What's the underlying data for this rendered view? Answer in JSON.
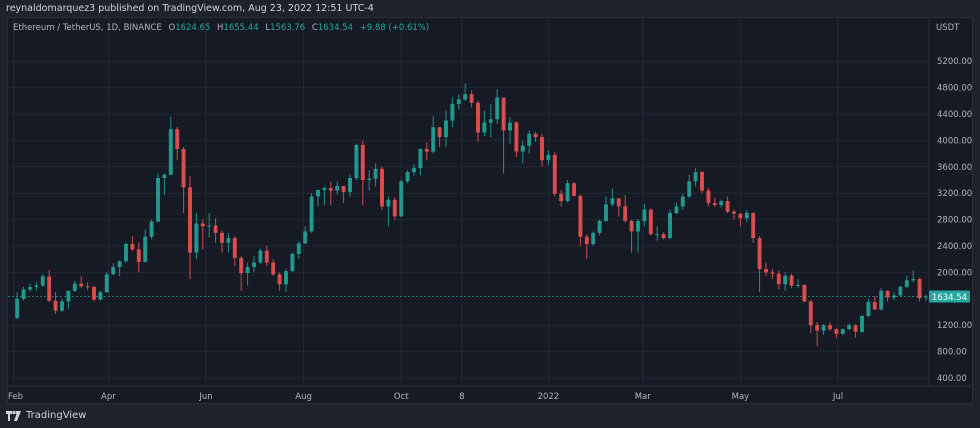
{
  "header": {
    "publisher_line": "reynaldomarquez3 published on TradingView.com, Aug 23, 2022 12:51 UTC-4",
    "symbol": "Ethereum / TetherUS, 1D, BINANCE",
    "ohlc": {
      "o_label": "O",
      "o": "1624.65",
      "h_label": "H",
      "h": "1655.44",
      "l_label": "L",
      "l": "1563.76",
      "c_label": "C",
      "c": "1634.54",
      "change": "+9.88 (+0.61%)"
    }
  },
  "footer": {
    "brand": "TradingView",
    "logo_icon": "tradingview-logo-icon"
  },
  "colors": {
    "up": "#26a69a",
    "down": "#ef5350",
    "background": "#161a25",
    "grid": "#232734",
    "last_price": "#26a69a"
  },
  "chart_data": {
    "type": "candlestick",
    "title": "Ethereum / TetherUS, 1D, BINANCE",
    "ylabel": "USDT",
    "ylim": [
      250,
      5550
    ],
    "y_ticks": [
      "400.00",
      "800.00",
      "1200.00",
      "2000.00",
      "2400.00",
      "2800.00",
      "3200.00",
      "3600.00",
      "4000.00",
      "4400.00",
      "4800.00",
      "5200.00"
    ],
    "x_range": [
      "2021-02-01",
      "2022-08-24"
    ],
    "x_ticks": [
      {
        "label": "Feb",
        "date": "2021-02-01"
      },
      {
        "label": "Apr",
        "date": "2021-04-01"
      },
      {
        "label": "Jun",
        "date": "2021-06-01"
      },
      {
        "label": "Aug",
        "date": "2021-08-01"
      },
      {
        "label": "Oct",
        "date": "2021-10-01"
      },
      {
        "label": "8",
        "date": "2021-11-08"
      },
      {
        "label": "2022",
        "date": "2022-01-01"
      },
      {
        "label": "Mar",
        "date": "2022-03-01"
      },
      {
        "label": "May",
        "date": "2022-05-01"
      },
      {
        "label": "Jul",
        "date": "2022-07-01"
      }
    ],
    "last_price": "1634.54",
    "grid": true,
    "candle_start": "2021-02-01",
    "candle_step_days": 4,
    "ohlc": [
      [
        1310,
        1700,
        1290,
        1600
      ],
      [
        1600,
        1780,
        1570,
        1740
      ],
      [
        1740,
        1830,
        1710,
        1780
      ],
      [
        1780,
        1850,
        1730,
        1800
      ],
      [
        1800,
        1970,
        1780,
        1940
      ],
      [
        1940,
        2040,
        1550,
        1570
      ],
      [
        1570,
        1700,
        1370,
        1420
      ],
      [
        1420,
        1600,
        1400,
        1560
      ],
      [
        1560,
        1730,
        1450,
        1720
      ],
      [
        1720,
        1870,
        1700,
        1830
      ],
      [
        1830,
        1940,
        1760,
        1790
      ],
      [
        1790,
        1850,
        1730,
        1780
      ],
      [
        1780,
        1800,
        1560,
        1590
      ],
      [
        1590,
        1720,
        1570,
        1700
      ],
      [
        1700,
        2000,
        1690,
        1970
      ],
      [
        1970,
        2140,
        1960,
        2080
      ],
      [
        2080,
        2180,
        1940,
        2170
      ],
      [
        2170,
        2450,
        2140,
        2430
      ],
      [
        2430,
        2550,
        2320,
        2350
      ],
      [
        2350,
        2450,
        2000,
        2160
      ],
      [
        2160,
        2650,
        2150,
        2540
      ],
      [
        2540,
        2800,
        2500,
        2770
      ],
      [
        2770,
        3500,
        2760,
        3430
      ],
      [
        3430,
        3500,
        3170,
        3480
      ],
      [
        3480,
        4360,
        3470,
        4170
      ],
      [
        4170,
        4200,
        3700,
        3870
      ],
      [
        3870,
        3900,
        2900,
        3290
      ],
      [
        3290,
        3460,
        1900,
        2300
      ],
      [
        2300,
        2900,
        2200,
        2740
      ],
      [
        2740,
        2800,
        2350,
        2700
      ],
      [
        2700,
        2900,
        2530,
        2710
      ],
      [
        2710,
        2820,
        2450,
        2600
      ],
      [
        2600,
        2640,
        2300,
        2450
      ],
      [
        2450,
        2600,
        2300,
        2520
      ],
      [
        2520,
        2550,
        2100,
        2220
      ],
      [
        2220,
        2250,
        1720,
        1990
      ],
      [
        1990,
        2150,
        1800,
        2080
      ],
      [
        2080,
        2250,
        2010,
        2150
      ],
      [
        2150,
        2360,
        2130,
        2330
      ],
      [
        2330,
        2410,
        2100,
        2150
      ],
      [
        2150,
        2200,
        1950,
        1970
      ],
      [
        1970,
        2000,
        1720,
        1820
      ],
      [
        1820,
        2050,
        1710,
        2020
      ],
      [
        2020,
        2300,
        2010,
        2280
      ],
      [
        2280,
        2470,
        2200,
        2440
      ],
      [
        2440,
        2700,
        2430,
        2620
      ],
      [
        2620,
        3200,
        2600,
        3150
      ],
      [
        3150,
        3250,
        3000,
        3250
      ],
      [
        3250,
        3300,
        3020,
        3280
      ],
      [
        3280,
        3380,
        3020,
        3240
      ],
      [
        3240,
        3380,
        3180,
        3310
      ],
      [
        3310,
        3310,
        3050,
        3220
      ],
      [
        3220,
        3480,
        3150,
        3430
      ],
      [
        3430,
        3950,
        3400,
        3930
      ],
      [
        3930,
        4000,
        3020,
        3400
      ],
      [
        3400,
        3550,
        3240,
        3420
      ],
      [
        3420,
        3650,
        3300,
        3570
      ],
      [
        3570,
        3600,
        2950,
        3000
      ],
      [
        3000,
        3150,
        2700,
        3100
      ],
      [
        3100,
        3140,
        2800,
        2850
      ],
      [
        2850,
        3400,
        2840,
        3380
      ],
      [
        3380,
        3550,
        3350,
        3520
      ],
      [
        3520,
        3640,
        3470,
        3580
      ],
      [
        3580,
        3880,
        3470,
        3870
      ],
      [
        3870,
        3970,
        3700,
        3830
      ],
      [
        3830,
        4370,
        3800,
        4200
      ],
      [
        4200,
        4200,
        3900,
        4050
      ],
      [
        4050,
        4450,
        3900,
        4300
      ],
      [
        4300,
        4650,
        4200,
        4550
      ],
      [
        4550,
        4700,
        4470,
        4620
      ],
      [
        4620,
        4860,
        4600,
        4700
      ],
      [
        4700,
        4760,
        4500,
        4570
      ],
      [
        4570,
        4600,
        3980,
        4120
      ],
      [
        4120,
        4450,
        4070,
        4270
      ],
      [
        4270,
        4550,
        4050,
        4320
      ],
      [
        4320,
        4780,
        4250,
        4650
      ],
      [
        4650,
        4650,
        3500,
        4150
      ],
      [
        4150,
        4350,
        3950,
        4270
      ],
      [
        4270,
        4290,
        3750,
        3830
      ],
      [
        3830,
        4000,
        3650,
        3920
      ],
      [
        3920,
        4150,
        3800,
        4100
      ],
      [
        4100,
        4130,
        3980,
        4050
      ],
      [
        4050,
        4100,
        3600,
        3700
      ],
      [
        3700,
        3850,
        3630,
        3780
      ],
      [
        3780,
        3830,
        3150,
        3190
      ],
      [
        3190,
        3250,
        3000,
        3080
      ],
      [
        3080,
        3400,
        3060,
        3350
      ],
      [
        3350,
        3370,
        3150,
        3160
      ],
      [
        3160,
        3180,
        2400,
        2540
      ],
      [
        2540,
        2580,
        2200,
        2430
      ],
      [
        2430,
        2620,
        2400,
        2600
      ],
      [
        2600,
        2800,
        2560,
        2780
      ],
      [
        2780,
        3150,
        2770,
        3030
      ],
      [
        3030,
        3270,
        3000,
        3120
      ],
      [
        3120,
        3130,
        2850,
        3000
      ],
      [
        3000,
        3170,
        2750,
        2780
      ],
      [
        2780,
        2800,
        2300,
        2620
      ],
      [
        2620,
        2800,
        2300,
        2780
      ],
      [
        2780,
        3040,
        2700,
        2950
      ],
      [
        2950,
        2970,
        2560,
        2580
      ],
      [
        2580,
        2700,
        2480,
        2580
      ],
      [
        2580,
        2610,
        2500,
        2520
      ],
      [
        2520,
        2950,
        2500,
        2900
      ],
      [
        2900,
        3050,
        2880,
        3000
      ],
      [
        3000,
        3200,
        2950,
        3150
      ],
      [
        3150,
        3480,
        3130,
        3380
      ],
      [
        3380,
        3580,
        3300,
        3520
      ],
      [
        3520,
        3540,
        3200,
        3240
      ],
      [
        3240,
        3280,
        3000,
        3050
      ],
      [
        3050,
        3130,
        2990,
        3020
      ],
      [
        3020,
        3100,
        2980,
        3080
      ],
      [
        3080,
        3150,
        2900,
        2920
      ],
      [
        2920,
        2950,
        2800,
        2890
      ],
      [
        2890,
        2900,
        2700,
        2820
      ],
      [
        2820,
        2950,
        2760,
        2900
      ],
      [
        2900,
        2910,
        2450,
        2520
      ],
      [
        2520,
        2550,
        1700,
        2050
      ],
      [
        2050,
        2150,
        1950,
        2000
      ],
      [
        2000,
        2050,
        1900,
        1980
      ],
      [
        1980,
        2020,
        1750,
        1820
      ],
      [
        1820,
        2000,
        1720,
        1950
      ],
      [
        1950,
        1980,
        1760,
        1800
      ],
      [
        1800,
        1900,
        1770,
        1810
      ],
      [
        1810,
        1820,
        1550,
        1560
      ],
      [
        1560,
        1580,
        1080,
        1200
      ],
      [
        1200,
        1250,
        880,
        1120
      ],
      [
        1120,
        1220,
        1050,
        1200
      ],
      [
        1200,
        1240,
        1110,
        1140
      ],
      [
        1140,
        1150,
        1000,
        1070
      ],
      [
        1070,
        1150,
        1050,
        1140
      ],
      [
        1140,
        1230,
        1130,
        1200
      ],
      [
        1200,
        1220,
        1010,
        1100
      ],
      [
        1100,
        1350,
        1080,
        1340
      ],
      [
        1340,
        1600,
        1320,
        1550
      ],
      [
        1550,
        1640,
        1430,
        1440
      ],
      [
        1440,
        1760,
        1420,
        1720
      ],
      [
        1720,
        1730,
        1560,
        1620
      ],
      [
        1620,
        1700,
        1580,
        1650
      ],
      [
        1650,
        1800,
        1630,
        1780
      ],
      [
        1780,
        1950,
        1760,
        1880
      ],
      [
        1880,
        2030,
        1850,
        1900
      ],
      [
        1900,
        1920,
        1560,
        1610
      ],
      [
        1624.65,
        1655.44,
        1563.76,
        1634.54
      ]
    ]
  }
}
